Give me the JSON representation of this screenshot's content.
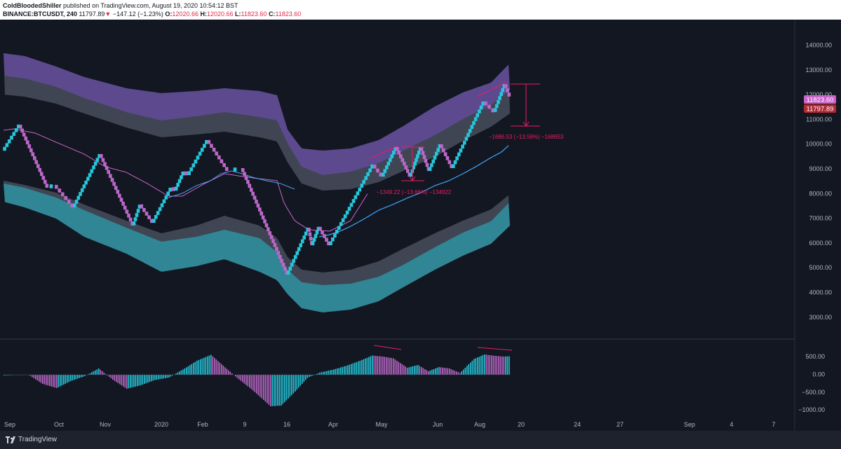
{
  "header": {
    "author": "ColdBloodedShiller",
    "published_text": "published on TradingView.com, August 19, 2020 10:54:12 BST",
    "symbol": "BINANCE:BTCUSDT, 240",
    "last_price": "11797.89",
    "change_arrow": "▼",
    "change": "−147.12 (−1.23%)",
    "o_label": "O:",
    "o_value": "12020.66",
    "h_label": "H:",
    "h_value": "12020.66",
    "l_label": "L:",
    "l_value": "11823.60",
    "c_label": "C:",
    "c_value": "11823.60"
  },
  "price_axis": {
    "ticks": [
      "14000.00",
      "13000.00",
      "12000.00",
      "11000.00",
      "10000.00",
      "9000.00",
      "8000.00",
      "7000.00",
      "6000.00",
      "5000.00",
      "4000.00",
      "3000.00"
    ],
    "badge_upper": "11823.60",
    "badge_lower": "11797.89"
  },
  "osc_axis": {
    "ticks": [
      "500.00",
      "0.00",
      "−500.00",
      "−1000.00"
    ]
  },
  "time_axis": {
    "labels": [
      "Sep",
      "Oct",
      "Nov",
      "2020",
      "Feb",
      "9",
      "16",
      "Apr",
      "May",
      "Jun",
      "Aug",
      "20",
      "24",
      "27",
      "Sep",
      "4",
      "7"
    ]
  },
  "annotations": {
    "measure_upper": "−1686.53 (−13.56%) −168653",
    "measure_lower": "−1349.22 (−13.66%) −134922"
  },
  "colors": {
    "background": "#131722",
    "bull": "#26c6da",
    "bear": "#ba68c8",
    "upper_band": "#5e4a91",
    "lower_band": "#2f8a98",
    "band_shadow": "#424856",
    "pink_line": "#c864c8",
    "blue_line": "#42a5f5",
    "annotation": "#e91e63"
  },
  "footer": {
    "brand": "TradingView"
  }
}
